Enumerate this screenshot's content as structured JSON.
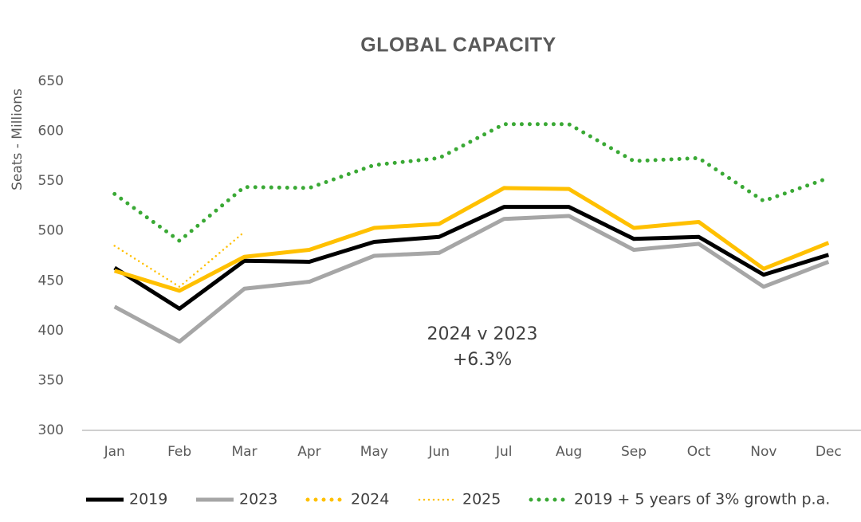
{
  "chart_data": {
    "type": "line",
    "title": "GLOBAL CAPACITY",
    "y_label": "Seats - Millions",
    "categories": [
      "Jan",
      "Feb",
      "Mar",
      "Apr",
      "May",
      "Jun",
      "Jul",
      "Aug",
      "Sep",
      "Oct",
      "Nov",
      "Dec"
    ],
    "series": [
      {
        "name": "2019",
        "color": "#000000",
        "style": "solid",
        "values": [
          463,
          422,
          470,
          469,
          489,
          494,
          524,
          524,
          492,
          494,
          456,
          476
        ]
      },
      {
        "name": "2023",
        "color": "#a6a6a6",
        "style": "solid",
        "values": [
          424,
          389,
          442,
          449,
          475,
          478,
          512,
          515,
          481,
          487,
          444,
          469
        ]
      },
      {
        "name": "2024",
        "color": "#ffc000",
        "style": "solid",
        "values": [
          460,
          440,
          474,
          481,
          503,
          507,
          543,
          542,
          503,
          509,
          462,
          488
        ]
      },
      {
        "name": "2025",
        "color": "#ffc000",
        "style": "thin-dotted",
        "values": [
          485,
          444,
          499,
          null,
          null,
          null,
          null,
          null,
          null,
          null,
          null,
          null
        ]
      },
      {
        "name": "2019 + 5 years of 3% growth p.a.",
        "color": "#3aa935",
        "style": "dotted",
        "values": [
          537,
          490,
          544,
          543,
          566,
          573,
          607,
          607,
          570,
          573,
          530,
          553
        ]
      }
    ],
    "annotation": [
      "2024 v 2023",
      "+6.3%"
    ],
    "ylim": [
      300,
      650
    ],
    "yticks": [
      300,
      350,
      400,
      450,
      500,
      550,
      600,
      650
    ],
    "grid": false
  }
}
